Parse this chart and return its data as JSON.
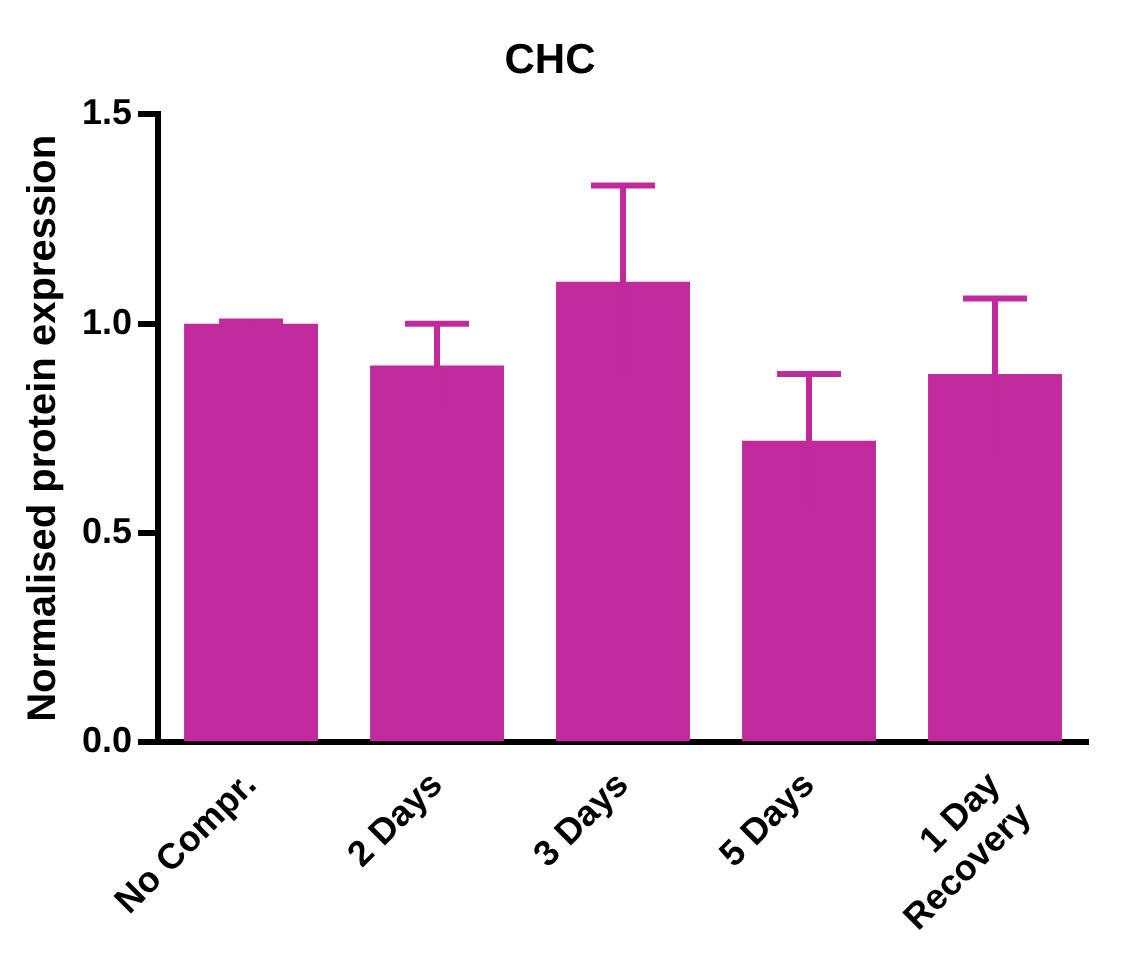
{
  "chart_data": {
    "type": "bar",
    "title": "CHC",
    "ylabel": "Normalised protein expression",
    "categories": [
      "No Compr.",
      "2 Days",
      "3 Days",
      "5 Days",
      "1 Day\nRecovery"
    ],
    "values": [
      1.0,
      0.9,
      1.1,
      0.72,
      0.88
    ],
    "errors": [
      0.005,
      0.1,
      0.23,
      0.16,
      0.18
    ],
    "color": "#c02a9c",
    "ylim": [
      0,
      1.5
    ],
    "yticks": [
      {
        "value": 0,
        "label": "0.0"
      },
      {
        "value": 0.5,
        "label": "0.5"
      },
      {
        "value": 1,
        "label": "1.0"
      },
      {
        "value": 1.5,
        "label": "1.5"
      }
    ],
    "grid": false,
    "legend": false
  }
}
